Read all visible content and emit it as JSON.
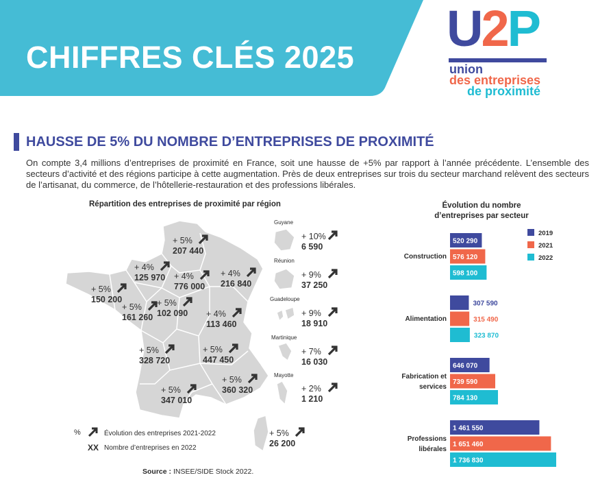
{
  "header": {
    "title": "CHIFFRES CLÉS 2025",
    "logo": {
      "letters": [
        "U",
        "2",
        "P"
      ],
      "line1": "union",
      "line2": "des entreprises",
      "line3": "de proximité"
    }
  },
  "section": {
    "heading": "HAUSSE DE 5% DU NOMBRE D’ENTREPRISES DE PROXIMITÉ",
    "paragraph": "On compte 3,4 millions d’entreprises de proximité en France, soit une hausse de +5% par rapport à l’année précédente. L’ensemble des secteurs d’activité et des régions participe à cette augmentation. Près de deux entreprises sur trois du secteur marchand relèvent des secteurs de l’artisanat, du commerce, de l’hôtellerie-restauration et des professions libérales."
  },
  "map": {
    "title": "Répartition des entreprises de proximité par région",
    "regions": [
      {
        "change": "+ 5%",
        "count": "207 440"
      },
      {
        "change": "+ 4%",
        "count": "125 970"
      },
      {
        "change": "+ 4%",
        "count": "776 000"
      },
      {
        "change": "+ 4%",
        "count": "216 840"
      },
      {
        "change": "+ 5%",
        "count": "150 200"
      },
      {
        "change": "+ 5%",
        "count": "161 260"
      },
      {
        "change": "+ 5%",
        "count": "102 090"
      },
      {
        "change": "+ 4%",
        "count": "113 460"
      },
      {
        "change": "+ 5%",
        "count": "328 720"
      },
      {
        "change": "+ 5%",
        "count": "447 450"
      },
      {
        "change": "+ 5%",
        "count": "360 320"
      },
      {
        "change": "+ 5%",
        "count": "347 010"
      },
      {
        "change": "+ 5%",
        "count": "26 200"
      }
    ],
    "overseas": [
      {
        "name": "Guyane",
        "change": "+ 10%",
        "count": "6 590"
      },
      {
        "name": "Réunion",
        "change": "+ 9%",
        "count": "37 250"
      },
      {
        "name": "Guadeloupe",
        "change": "+ 9%",
        "count": "18 910"
      },
      {
        "name": "Martinique",
        "change": "+ 7%",
        "count": "16 030"
      },
      {
        "name": "Mayotte",
        "change": "+ 2%",
        "count": "1 210"
      }
    ],
    "legend": {
      "symbol1": "%",
      "text1": "Évolution des entreprises 2021-2022",
      "symbol2": "XX",
      "text2": "Nombre d’entreprises en 2022"
    },
    "source_label": "Source :",
    "source_text": "INSEE/SIDE Stock 2022."
  },
  "chart_data": {
    "type": "hbar",
    "title": "Évolution du nombre d’entreprises par secteur",
    "categories": [
      "Construction",
      "Alimentation",
      "Fabrication et services",
      "Professions libérales"
    ],
    "series": [
      {
        "name": "2019",
        "color": "#3f4a9e",
        "values": [
          520290,
          307590,
          646070,
          1461550
        ],
        "value_labels": [
          "520 290",
          "307 590",
          "646 070",
          "1 461 550"
        ]
      },
      {
        "name": "2021",
        "color": "#f0674a",
        "values": [
          576120,
          315490,
          739590,
          1651460
        ],
        "value_labels": [
          "576 120",
          "315 490",
          "739 590",
          "1 651 460"
        ]
      },
      {
        "name": "2022",
        "color": "#1fbcd2",
        "values": [
          598100,
          323870,
          784130,
          1736830
        ],
        "value_labels": [
          "598 100",
          "323 870",
          "784 130",
          "1 736 830"
        ]
      }
    ]
  }
}
